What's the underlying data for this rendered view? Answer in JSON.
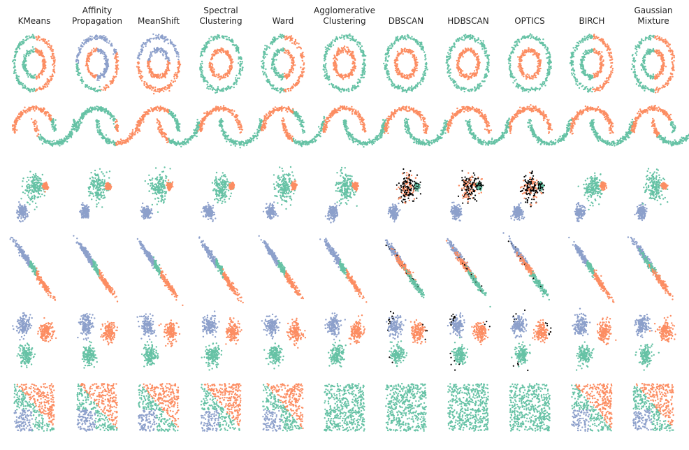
{
  "chart_data": {
    "type": "scatter",
    "layout": "grid of 6 datasets (rows) x 11 clustering methods (columns)",
    "methods": [
      "KMeans",
      "Affinity\nPropagation",
      "MeanShift",
      "Spectral\nClustering",
      "Ward",
      "Agglomerative\nClustering",
      "DBSCAN",
      "HDBSCAN",
      "OPTICS",
      "BIRCH",
      "Gaussian\nMixture"
    ],
    "datasets": [
      "noisy_circles",
      "noisy_moons",
      "varied",
      "aniso",
      "blobs",
      "no_structure"
    ],
    "axes": "off",
    "grid": false,
    "legend": "none",
    "cluster_colors": [
      "#66c2a5",
      "#fc8d62",
      "#8da0cb",
      "#e78ac3",
      "#ffd92f",
      "#000000"
    ],
    "cluster_color_roles": [
      "cluster 0",
      "cluster 1",
      "cluster 2",
      "cluster 3",
      "cluster 4",
      "noise / outliers"
    ],
    "assignments": [
      [
        "kmeans-halves",
        "affinity-several",
        "meanshift-few",
        "spectral-rings",
        "ward-halves",
        "agglomerative-rings",
        "dbscan-rings",
        "hdbscan-rings",
        "optics-rings",
        "birch-halves",
        "gmm-halves"
      ],
      [
        "kmeans-halves",
        "affinity-several",
        "meanshift-split",
        "spectral-moons",
        "ward-split",
        "agglomerative-moons",
        "dbscan-moons",
        "hdbscan-moons",
        "optics-moons",
        "birch-moons",
        "gmm-halves"
      ],
      [
        "kmeans-blobs",
        "affinity-blobs",
        "meanshift-blobs",
        "spectral-blobs",
        "ward-blobs",
        "agglomerative-blobs",
        "dbscan-noise",
        "hdbscan-noise",
        "optics-noise",
        "birch-blobs",
        "gmm-blobs"
      ],
      [
        "kmeans-mixed",
        "affinity-mixed",
        "meanshift-mixed",
        "spectral-mixed",
        "ward-mixed",
        "agglomerative-mixed",
        "dbscan-noise",
        "hdbscan-noise",
        "optics-noise",
        "birch-mixed",
        "gmm-blobs"
      ],
      [
        "kmeans-blobs",
        "affinity-blobs",
        "meanshift-blobs",
        "spectral-blobs",
        "ward-blobs",
        "agglomerative-blobs",
        "dbscan-outliers",
        "hdbscan-outliers",
        "optics-outliers",
        "birch-blobs",
        "gmm-blobs"
      ],
      [
        "kmeans-regions",
        "affinity-regions",
        "meanshift-regions",
        "spectral-regions",
        "ward-regions",
        "agglomerative-single",
        "dbscan-single",
        "hdbscan-single",
        "optics-single",
        "birch-regions",
        "gmm-regions"
      ]
    ]
  }
}
